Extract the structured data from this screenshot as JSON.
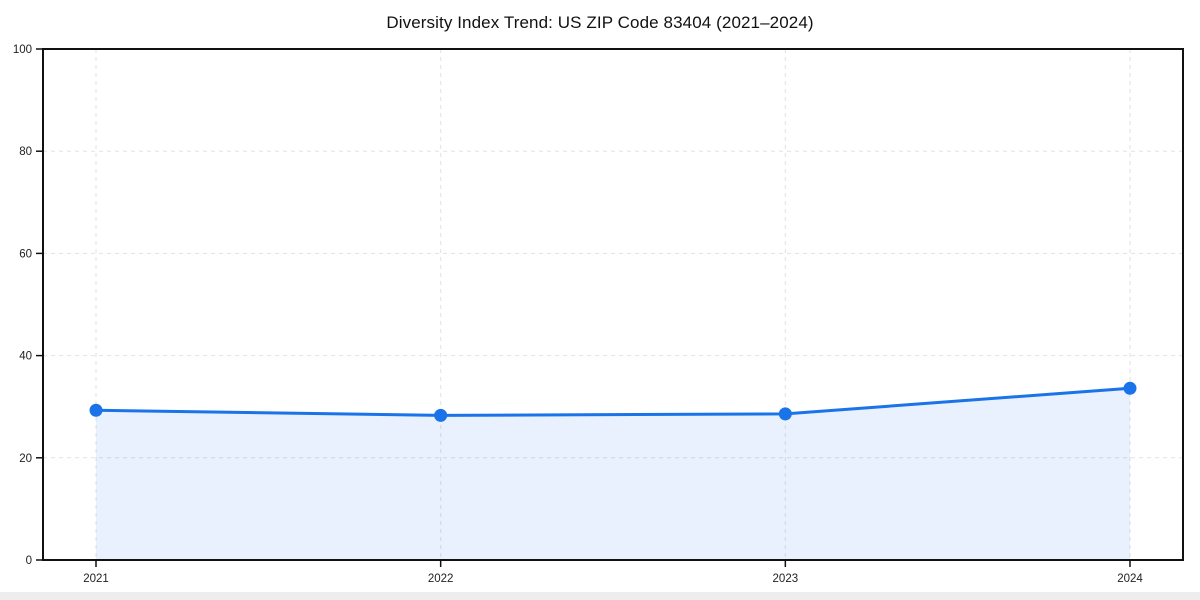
{
  "page": {
    "background": "#ffffff",
    "footer_strip_color": "#ededed"
  },
  "chart_data": {
    "type": "area",
    "title": "Diversity Index Trend: US ZIP Code 83404 (2021–2024)",
    "x": [
      "2021",
      "2022",
      "2023",
      "2024"
    ],
    "series": [
      {
        "name": "Diversity Index",
        "values": [
          29.3,
          28.3,
          28.6,
          33.6
        ]
      }
    ],
    "xlabel": "",
    "ylabel": "",
    "ylim": [
      0,
      100
    ],
    "yticks": [
      0,
      20,
      40,
      60,
      80,
      100
    ],
    "grid": true,
    "grid_style": "dashed",
    "legend_position": "none",
    "line_color": "#1a73e8",
    "marker": "circle",
    "marker_radius": 6.5,
    "fill_color": "rgba(26,115,232,0.10)",
    "grid_color": "#e2e2e2",
    "spine_color": "#111111",
    "tick_label_color": "#222222"
  }
}
